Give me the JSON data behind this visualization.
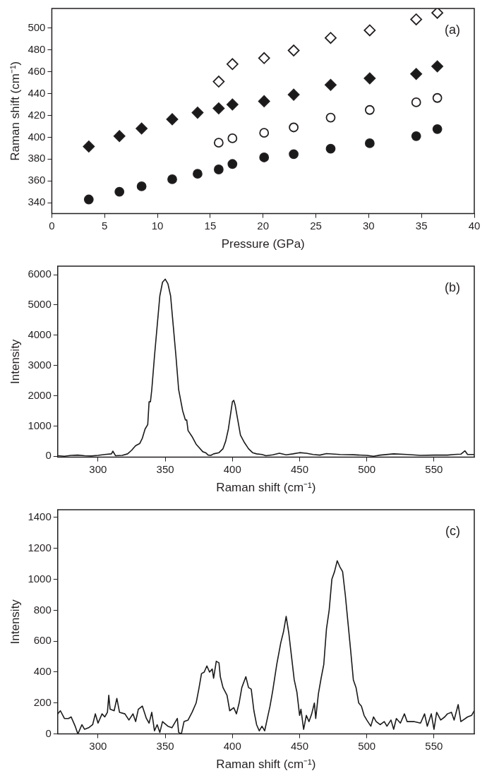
{
  "chart_data": [
    {
      "type": "scatter",
      "xlabel": "Pressure (GPa)",
      "ylabel": "Raman shift (cm⁻¹)",
      "xlim": [
        0,
        40
      ],
      "xticks": [
        0,
        5,
        10,
        15,
        20,
        25,
        30,
        35,
        40
      ],
      "ylim": [
        330,
        518
      ],
      "yticks": [
        340,
        360,
        380,
        400,
        420,
        440,
        460,
        480,
        500
      ],
      "grid": false,
      "legend": false,
      "annotations": [
        "(a)"
      ],
      "series": [
        {
          "color": "#1a1a1a",
          "marker": "circle",
          "x": [
            3.5,
            6.4,
            8.5,
            11.4,
            13.8,
            15.8,
            17.1,
            20.1,
            22.9,
            26.4,
            30.1,
            34.5,
            36.5
          ],
          "values": [
            343,
            350,
            355,
            361.5,
            366.5,
            370.5,
            375.5,
            381.5,
            384.5,
            389.5,
            394.5,
            401,
            407.5
          ]
        },
        {
          "color": "#ffffff",
          "marker": "circle",
          "x": [
            15.8,
            17.1,
            20.1,
            22.9,
            26.4,
            30.1,
            34.5,
            36.5
          ],
          "values": [
            395,
            399,
            404,
            409,
            418,
            425,
            432,
            436
          ]
        },
        {
          "color": "#1a1a1a",
          "marker": "diamond",
          "x": [
            3.5,
            6.4,
            8.5,
            11.4,
            13.8,
            15.8,
            17.1,
            20.1,
            22.9,
            26.4,
            30.1,
            34.5,
            36.5
          ],
          "values": [
            391.5,
            401,
            408,
            416.5,
            422.5,
            426.5,
            430,
            433,
            439,
            448,
            454,
            458,
            465
          ]
        },
        {
          "color": "#ffffff",
          "marker": "diamond",
          "x": [
            15.8,
            17.1,
            20.1,
            22.9,
            26.4,
            30.1,
            34.5,
            36.5
          ],
          "values": [
            451,
            467,
            472.5,
            479.5,
            491,
            498,
            508,
            514
          ]
        }
      ]
    },
    {
      "type": "line",
      "xlabel": "Raman shift (cm⁻¹)",
      "ylabel": "Intensity",
      "xlim": [
        270,
        580
      ],
      "xticks": [
        300,
        350,
        400,
        450,
        500,
        550
      ],
      "ylim": [
        -30,
        6280
      ],
      "yticks": [
        0,
        1000,
        2000,
        3000,
        4000,
        5000,
        6000
      ],
      "grid": false,
      "legend": false,
      "marker": "none",
      "line_style": "solid",
      "annotations": [
        "(b)"
      ],
      "series": [
        {
          "color": "#1a1a1a",
          "x": [
            270,
            275,
            280,
            285,
            290,
            295,
            300,
            305,
            310,
            311,
            313,
            318,
            322,
            325,
            328,
            331,
            333,
            335,
            337,
            338,
            339,
            340,
            342,
            344,
            346,
            348,
            350,
            352,
            354,
            356,
            358,
            360,
            363,
            365,
            366,
            367,
            370,
            373,
            375,
            378,
            380,
            382,
            384,
            386,
            390,
            393,
            395,
            397,
            399,
            400,
            401,
            402,
            404,
            406,
            409,
            412,
            415,
            418,
            422,
            425,
            430,
            435,
            440,
            445,
            450,
            455,
            460,
            465,
            470,
            480,
            490,
            500,
            505,
            510,
            520,
            530,
            540,
            550,
            560,
            565,
            570,
            573,
            575,
            580
          ],
          "values": [
            20,
            0,
            30,
            40,
            20,
            10,
            30,
            60,
            80,
            170,
            20,
            30,
            80,
            200,
            350,
            420,
            600,
            900,
            1050,
            1800,
            1800,
            2200,
            3300,
            4300,
            5300,
            5750,
            5850,
            5700,
            5300,
            4300,
            3300,
            2200,
            1500,
            1200,
            1200,
            850,
            650,
            400,
            300,
            150,
            120,
            40,
            30,
            80,
            120,
            250,
            500,
            900,
            1500,
            1800,
            1850,
            1700,
            1200,
            700,
            450,
            250,
            120,
            80,
            60,
            20,
            50,
            100,
            50,
            80,
            120,
            100,
            60,
            40,
            90,
            60,
            50,
            30,
            0,
            40,
            80,
            60,
            30,
            40,
            40,
            60,
            70,
            180,
            60,
            60
          ]
        }
      ]
    },
    {
      "type": "line",
      "xlabel": "Raman shift (cm⁻¹)",
      "ylabel": "Intensity",
      "xlim": [
        270,
        580
      ],
      "xticks": [
        300,
        350,
        400,
        450,
        500,
        550
      ],
      "ylim": [
        0,
        1450
      ],
      "yticks": [
        0,
        200,
        400,
        600,
        800,
        1000,
        1200,
        1400
      ],
      "grid": false,
      "legend": false,
      "marker": "none",
      "line_style": "solid",
      "annotations": [
        "(c)"
      ],
      "series": [
        {
          "color": "#1a1a1a",
          "x": [
            270,
            272,
            275,
            278,
            280,
            283,
            285,
            288,
            290,
            293,
            296,
            298,
            300,
            303,
            305,
            307,
            308,
            309,
            312,
            314,
            316,
            320,
            323,
            326,
            328,
            330,
            333,
            336,
            338,
            340,
            342,
            344,
            346,
            348,
            352,
            355,
            359,
            360,
            362,
            364,
            367,
            370,
            373,
            375,
            377,
            379,
            381,
            383,
            385,
            386,
            388,
            390,
            391,
            393,
            396,
            398,
            401,
            403,
            405,
            407,
            410,
            412,
            414,
            416,
            418,
            420,
            422,
            424,
            426,
            428,
            430,
            433,
            436,
            438,
            440,
            442,
            444,
            446,
            448,
            450,
            451,
            453,
            455,
            457,
            459,
            461,
            462,
            464,
            466,
            468,
            470,
            472,
            474,
            476,
            478,
            480,
            482,
            484,
            486,
            488,
            490,
            492,
            494,
            496,
            498,
            500,
            503,
            505,
            507,
            510,
            513,
            515,
            518,
            520,
            522,
            525,
            528,
            530,
            533,
            535,
            540,
            543,
            545,
            548,
            550,
            552,
            555,
            558,
            560,
            563,
            565,
            568,
            570,
            575,
            578,
            580
          ],
          "values": [
            130,
            150,
            100,
            100,
            110,
            50,
            0,
            60,
            30,
            40,
            60,
            130,
            70,
            130,
            110,
            140,
            250,
            160,
            150,
            230,
            140,
            130,
            90,
            130,
            80,
            160,
            180,
            100,
            70,
            140,
            20,
            60,
            10,
            80,
            50,
            40,
            100,
            10,
            0,
            80,
            90,
            140,
            200,
            290,
            390,
            400,
            440,
            400,
            420,
            360,
            470,
            460,
            370,
            300,
            250,
            150,
            170,
            130,
            200,
            300,
            370,
            300,
            290,
            150,
            60,
            20,
            50,
            20,
            100,
            180,
            280,
            450,
            590,
            660,
            760,
            650,
            500,
            350,
            270,
            120,
            160,
            30,
            120,
            80,
            130,
            200,
            100,
            260,
            360,
            450,
            680,
            800,
            1000,
            1050,
            1120,
            1080,
            1050,
            900,
            720,
            540,
            350,
            300,
            200,
            180,
            120,
            90,
            50,
            110,
            80,
            60,
            80,
            50,
            90,
            30,
            100,
            70,
            130,
            80,
            80,
            80,
            70,
            130,
            50,
            130,
            30,
            140,
            90,
            110,
            130,
            140,
            90,
            190,
            80,
            110,
            120,
            150
          ]
        }
      ]
    }
  ]
}
